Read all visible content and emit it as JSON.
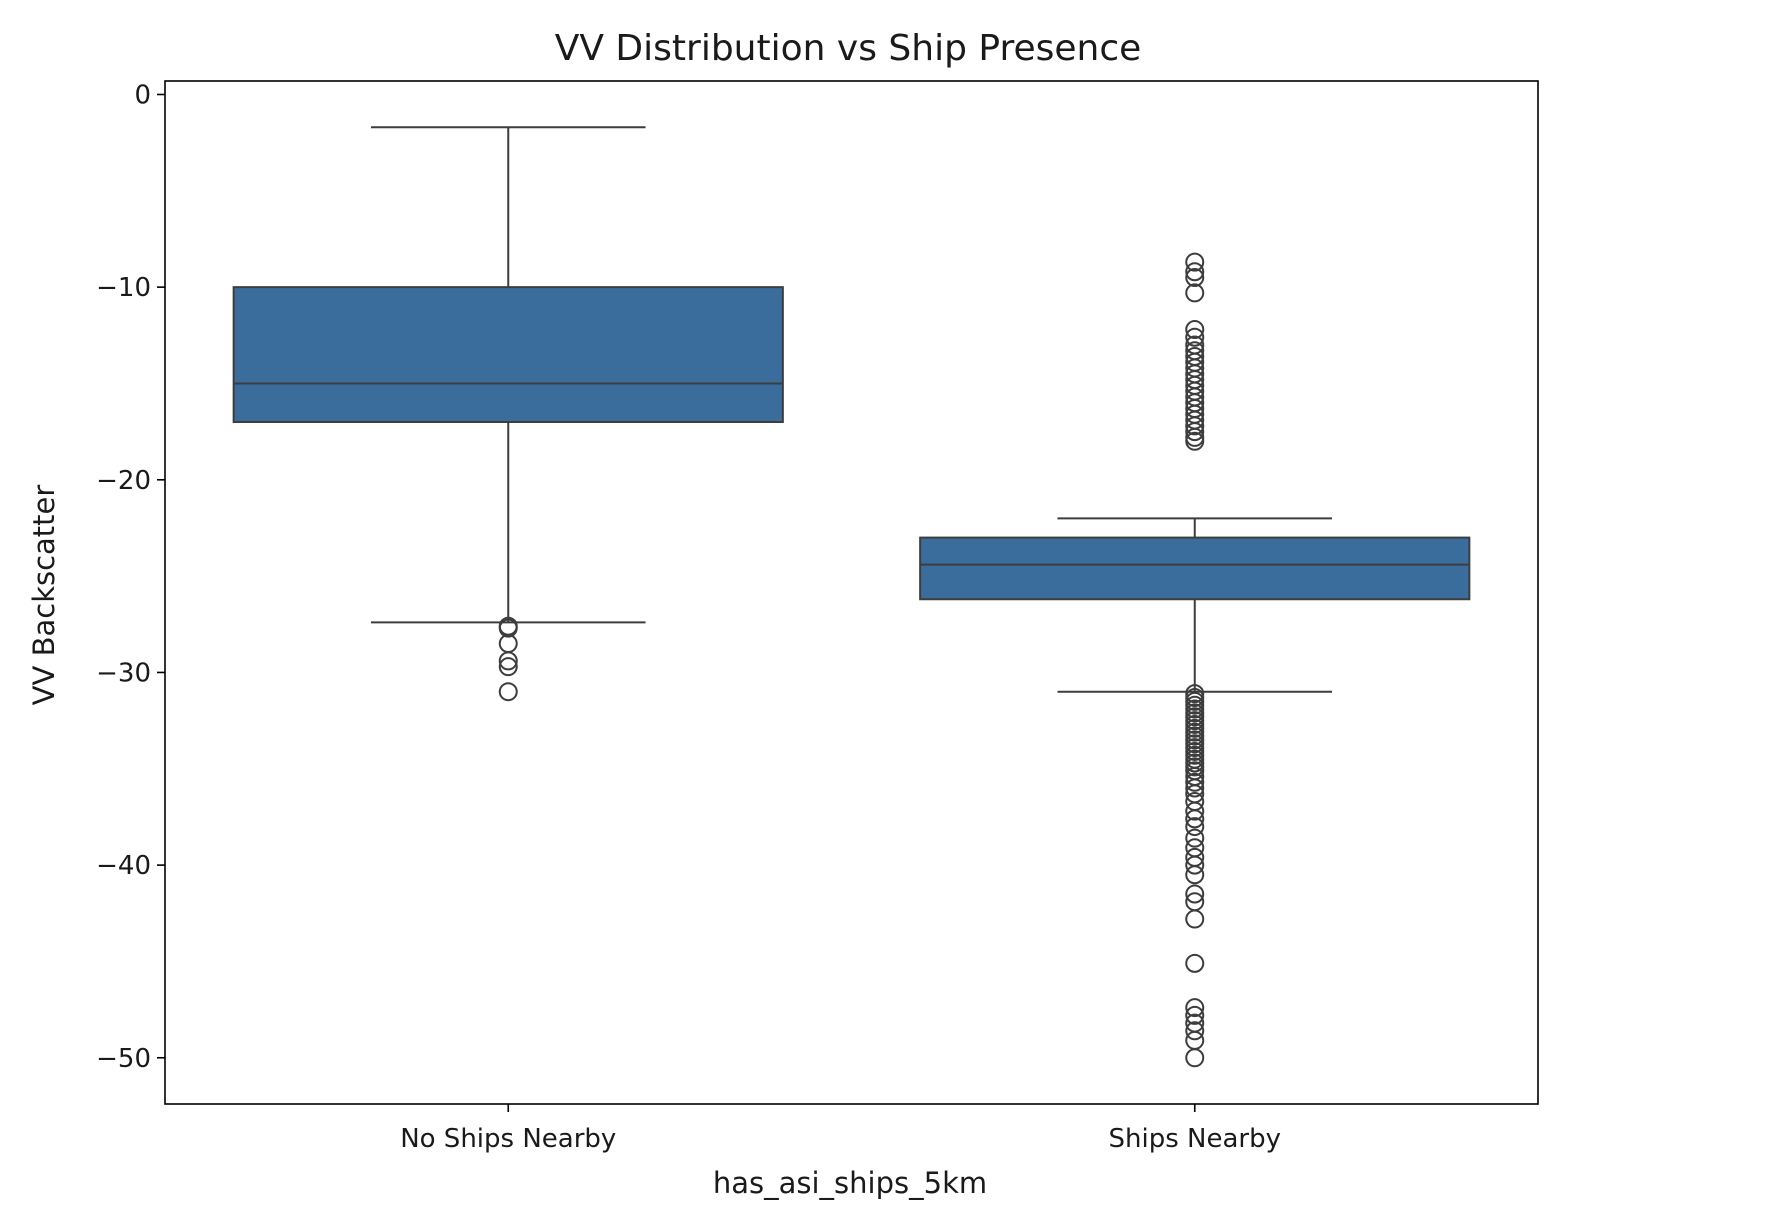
{
  "chart_data": {
    "type": "box",
    "title": "VV Distribution vs Ship Presence",
    "xlabel": "has_asi_ships_5km",
    "ylabel": "VV Backscatter",
    "ylim": [
      -52.4,
      0.7
    ],
    "yticks": [
      0,
      -10,
      -20,
      -30,
      -40,
      -50
    ],
    "ytick_labels": [
      "0",
      "−10",
      "−20",
      "−30",
      "−40",
      "−50"
    ],
    "grid": false,
    "box_color": "#3a6d9b",
    "edge_color": "#3d3d3d",
    "categories": [
      "No Ships Nearby",
      "Ships Nearby"
    ],
    "boxes": [
      {
        "category": "No Ships Nearby",
        "whisker_low": -27.4,
        "q1": -17.0,
        "median": -15.0,
        "q3": -10.0,
        "whisker_high": -1.7,
        "outliers": [
          -27.6,
          -27.7,
          -28.5,
          -29.4,
          -29.7,
          -31.0
        ]
      },
      {
        "category": "Ships Nearby",
        "whisker_low": -31.0,
        "q1": -26.2,
        "median": -24.4,
        "q3": -23.0,
        "whisker_high": -22.0,
        "outliers": [
          -8.7,
          -9.2,
          -9.5,
          -10.3,
          -12.2,
          -12.6,
          -13.0,
          -13.3,
          -13.6,
          -13.9,
          -14.2,
          -14.5,
          -14.8,
          -15.1,
          -15.4,
          -15.7,
          -16.0,
          -16.3,
          -16.6,
          -16.9,
          -17.2,
          -17.5,
          -17.8,
          -18.0,
          -31.1,
          -31.3,
          -31.5,
          -31.7,
          -31.9,
          -32.1,
          -32.3,
          -32.5,
          -32.7,
          -32.9,
          -33.1,
          -33.3,
          -33.5,
          -33.7,
          -33.9,
          -34.1,
          -34.3,
          -34.5,
          -34.7,
          -34.9,
          -35.1,
          -35.4,
          -35.7,
          -36.0,
          -36.3,
          -36.7,
          -37.2,
          -37.6,
          -38.0,
          -38.6,
          -39.1,
          -39.6,
          -40.0,
          -40.5,
          -41.5,
          -41.9,
          -42.8,
          -45.1,
          -47.4,
          -47.8,
          -48.2,
          -48.6,
          -49.1,
          -50.0
        ]
      }
    ]
  }
}
